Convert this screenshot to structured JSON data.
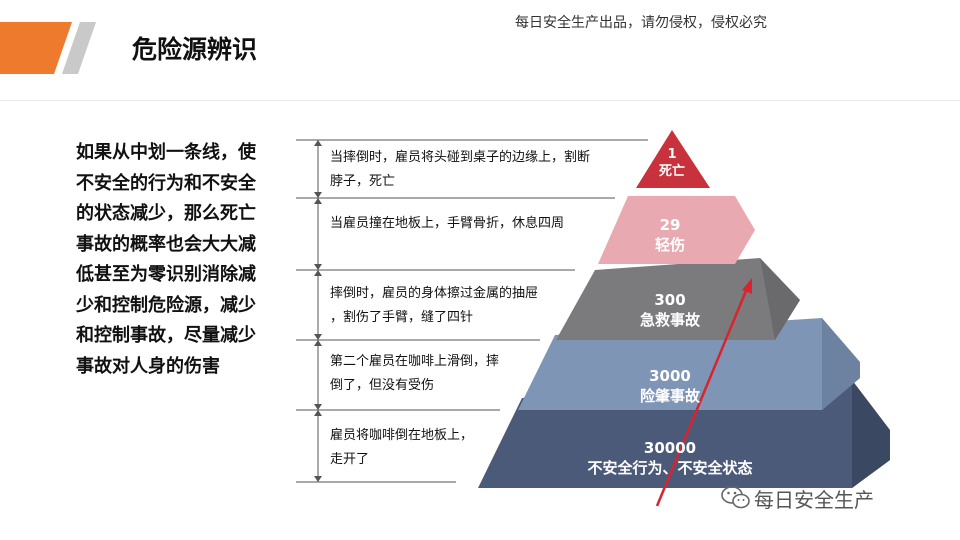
{
  "header": {
    "watermark": "每日安全生产出品，请勿侵权，侵权必究",
    "title": "危险源辨识"
  },
  "left_text": "如果从中划一条线，使不安全的行为和不安全的状态减少，那么死亡事故的概率也会大大减低甚至为零识别消除减少和控制危险源，减少和控制事故，尽量减少事故对人身的伤害",
  "notes": [
    {
      "line1": "当摔倒时，雇员将头碰到桌子的边缘上，割断",
      "line2": "脖子，死亡"
    },
    {
      "line1": "当雇员撞在地板上，手臂骨折，休息四周",
      "line2": ""
    },
    {
      "line1": "摔倒时，雇员的身体擦过金属的抽屉",
      "line2": "，割伤了手臂，缝了四针"
    },
    {
      "line1": "第二个雇员在咖啡上滑倒，摔",
      "line2": "倒了，但没有受伤"
    },
    {
      "line1": "雇员将咖啡倒在地板上，",
      "line2": "走开了"
    }
  ],
  "pyramid": [
    {
      "count": "1",
      "label": "死亡",
      "color": "#c8323c"
    },
    {
      "count": "29",
      "label": "轻伤",
      "color": "#e8a9b0"
    },
    {
      "count": "300",
      "label": "急救事故",
      "color": "#7b7b7d"
    },
    {
      "count": "3000",
      "label": "险肇事故",
      "color": "#7f95b5"
    },
    {
      "count": "30000",
      "label": "不安全行为、不安全状态",
      "color": "#4a5a78"
    }
  ],
  "colors": {
    "accent_orange": "#ee7a2e",
    "accent_gray": "#c9c9c9",
    "arrow_red": "#d9232e"
  },
  "footer": {
    "brand": "每日安全生产"
  }
}
